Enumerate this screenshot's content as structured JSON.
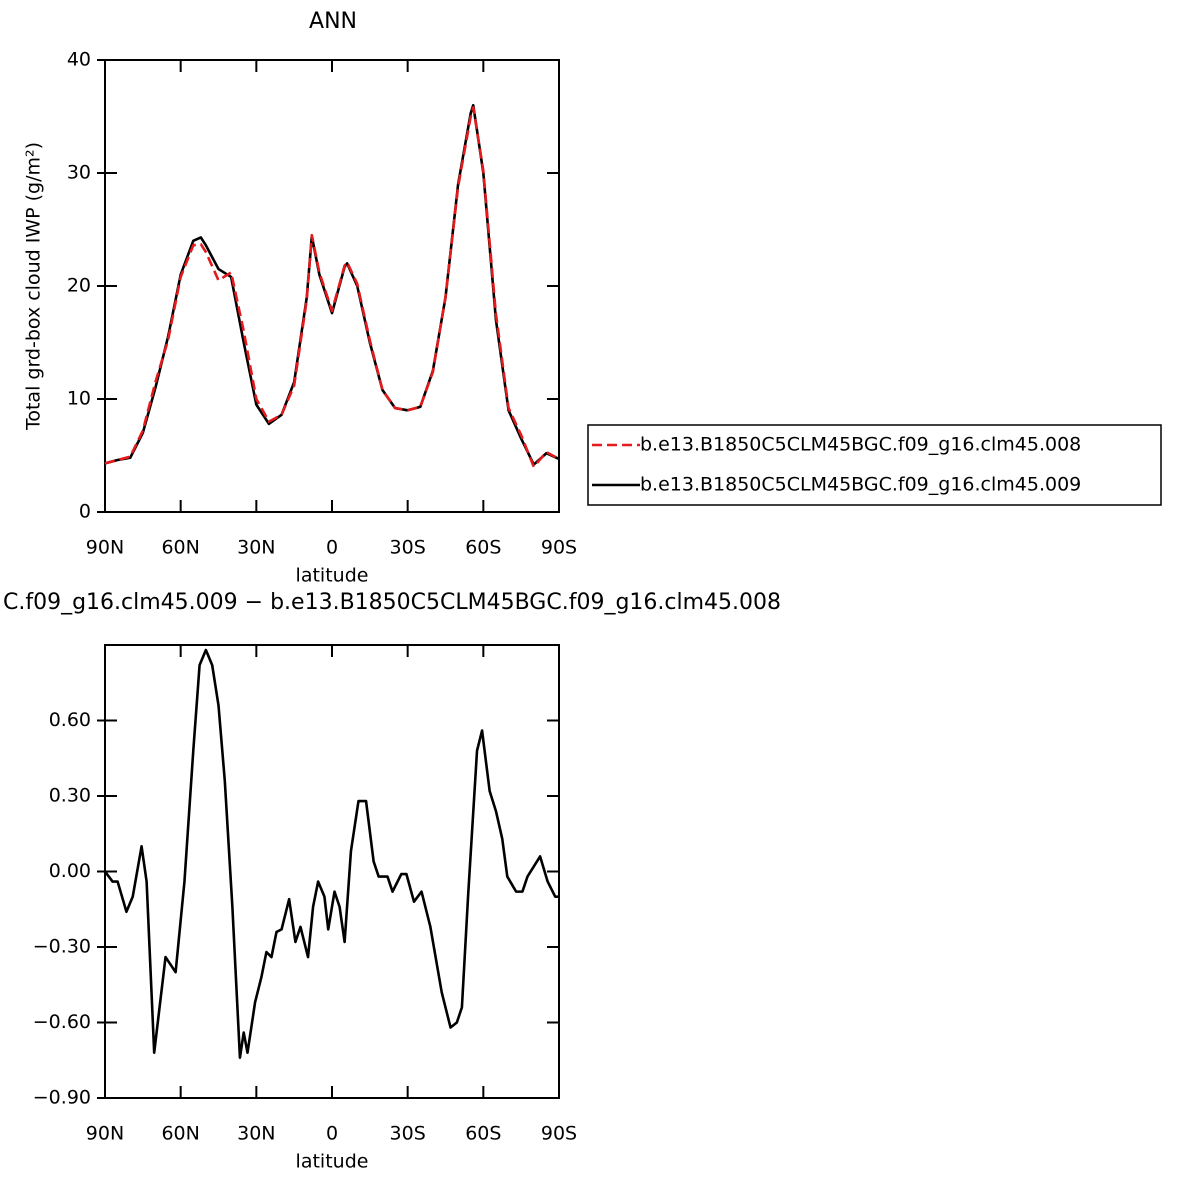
{
  "chart_data": [
    {
      "type": "line",
      "title": "ANN",
      "xlabel": "latitude",
      "ylabel": "Total grd-box cloud IWP (g/m²)",
      "x": [
        90,
        85,
        80,
        75,
        70,
        65,
        60,
        55,
        52,
        50,
        45,
        40,
        35,
        30,
        25,
        20,
        15,
        10,
        8,
        5,
        0,
        -5,
        -6,
        -10,
        -15,
        -20,
        -25,
        -30,
        -35,
        -40,
        -45,
        -50,
        -55,
        -56,
        -60,
        -65,
        -70,
        -75,
        -80,
        -85,
        -90
      ],
      "series": [
        {
          "name": "b.e13.B1850C5CLM45BGC.f09_g16.clm45.008",
          "color": "#e41a1c",
          "dash": true,
          "values": [
            4.3,
            4.6,
            4.9,
            7.2,
            11.5,
            15.2,
            20.8,
            23.6,
            23.7,
            23,
            20.5,
            21.2,
            16,
            10,
            8,
            8.6,
            11.2,
            18.8,
            24.5,
            21.2,
            17.8,
            21.8,
            22.1,
            20.2,
            15.2,
            10.8,
            9.2,
            9,
            9.3,
            12.4,
            19,
            28.8,
            35,
            35.8,
            30.2,
            17.5,
            9.2,
            6.8,
            4,
            5.3,
            4.7
          ]
        },
        {
          "name": "b.e13.B1850C5CLM45BGC.f09_g16.clm45.009",
          "color": "#000000",
          "dash": false,
          "values": [
            4.3,
            4.6,
            4.8,
            7,
            11,
            15.5,
            21,
            24,
            24.3,
            23.6,
            21.5,
            20.8,
            15,
            9.5,
            7.8,
            8.6,
            11.5,
            19,
            24.4,
            21,
            17.6,
            21.7,
            22,
            20,
            15,
            10.8,
            9.2,
            9,
            9.3,
            12.5,
            19,
            29,
            35.3,
            36,
            30,
            17,
            9,
            6.5,
            4.2,
            5.2,
            4.7
          ]
        }
      ],
      "xlim": [
        90,
        -90
      ],
      "xticks": [
        {
          "value": 90,
          "label": "90N"
        },
        {
          "value": 60,
          "label": "60N"
        },
        {
          "value": 30,
          "label": "30N"
        },
        0,
        {
          "value": -30,
          "label": "30S"
        },
        {
          "value": -60,
          "label": "60S"
        },
        {
          "value": -90,
          "label": "90S"
        }
      ],
      "ylim": [
        0,
        40
      ],
      "yticks": [
        0,
        10,
        20,
        30,
        40
      ],
      "legend": "right"
    },
    {
      "type": "line",
      "title": "C.f09_g16.clm45.009 − b.e13.B1850C5CLM45BGC.f09_g16.clm45.008",
      "xlabel": "latitude",
      "x": [
        90,
        87,
        85,
        81.5,
        79,
        75.5,
        73.5,
        70.5,
        66,
        62,
        58.5,
        55,
        52.5,
        50,
        47.5,
        45,
        42.5,
        39.5,
        36.5,
        35,
        33.5,
        30.5,
        28,
        26,
        24,
        22,
        20,
        17,
        14.5,
        12.5,
        9.5,
        7.5,
        5.5,
        3,
        1.5,
        -1,
        -3,
        -5,
        -7.5,
        -10.5,
        -13.5,
        -16.5,
        -18.5,
        -22,
        -24,
        -27.5,
        -29.5,
        -32.5,
        -35.5,
        -39,
        -43.5,
        -47,
        -49.5,
        -51.5,
        -54,
        -57.5,
        -59.5,
        -62.5,
        -65,
        -67.5,
        -69.5,
        -73,
        -75.5,
        -77.5,
        -82.5,
        -85.5,
        -88.5,
        -90
      ],
      "series": [
        {
          "name": null,
          "color": "#000000",
          "dash": false,
          "values": [
            0,
            -0.04,
            -0.04,
            -0.16,
            -0.1,
            0.1,
            -0.04,
            -0.72,
            -0.34,
            -0.4,
            -0.04,
            0.48,
            0.82,
            0.88,
            0.82,
            0.66,
            0.36,
            -0.14,
            -0.74,
            -0.64,
            -0.72,
            -0.52,
            -0.42,
            -0.32,
            -0.34,
            -0.24,
            -0.23,
            -0.11,
            -0.28,
            -0.22,
            -0.34,
            -0.14,
            -0.04,
            -0.1,
            -0.23,
            -0.08,
            -0.14,
            -0.28,
            0.08,
            0.28,
            0.28,
            0.04,
            -0.02,
            -0.02,
            -0.08,
            -0.01,
            -0.01,
            -0.12,
            -0.08,
            -0.22,
            -0.48,
            -0.62,
            -0.6,
            -0.54,
            -0.09,
            0.48,
            0.56,
            0.32,
            0.24,
            0.13,
            -0.02,
            -0.08,
            -0.08,
            -0.02,
            0.06,
            -0.04,
            -0.1,
            -0.1
          ]
        }
      ],
      "xlim": [
        90,
        -90
      ],
      "xticks": [
        {
          "value": 90,
          "label": "90N"
        },
        {
          "value": 60,
          "label": "60N"
        },
        {
          "value": 30,
          "label": "30N"
        },
        0,
        {
          "value": -30,
          "label": "30S"
        },
        {
          "value": -60,
          "label": "60S"
        },
        {
          "value": -90,
          "label": "90S"
        }
      ],
      "ylim": [
        -0.9,
        0.9
      ],
      "yticks": [
        {
          "value": -0.9,
          "label": "−0.90"
        },
        {
          "value": -0.6,
          "label": "−0.60"
        },
        {
          "value": -0.3,
          "label": "−0.30"
        },
        {
          "value": 0,
          "label": "0.00"
        },
        {
          "value": 0.3,
          "label": "0.30"
        },
        {
          "value": 0.6,
          "label": "0.60"
        }
      ]
    }
  ]
}
